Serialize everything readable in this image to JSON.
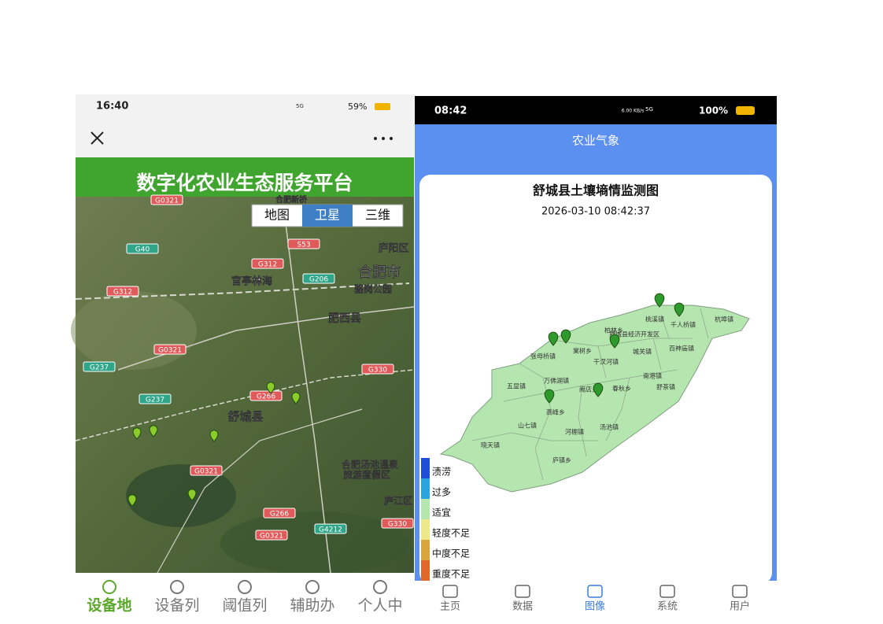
{
  "left_screen": {
    "status_bar": {
      "time": "16:40",
      "network": "5G",
      "battery": "59%"
    },
    "banner_title": "数字化农业生态服务平台",
    "map_toggle": [
      "地图",
      "卫星",
      "三维"
    ],
    "road_labels": [
      "G0321",
      "G40",
      "S53",
      "G312",
      "G206",
      "G312",
      "G0321",
      "G237",
      "G330",
      "G266",
      "G237",
      "G0321",
      "G266",
      "G4212",
      "G0321",
      "G330"
    ],
    "place_labels": [
      "合肥新桥",
      "庐阳区",
      "官亭林海",
      "合肥市",
      "骆岗公园",
      "肥西县",
      "舒城县",
      "合肥汤池温泉",
      "旅游度假区",
      "庐江区"
    ],
    "tabs": [
      "设备地",
      "设备列",
      "阈值列",
      "辅助办",
      "个人中"
    ]
  },
  "right_screen": {
    "status_bar": {
      "time": "08:42",
      "speed": "6.00 KB/s",
      "network": "5G",
      "battery": "100%"
    },
    "header_title": "农业气象",
    "card": {
      "title": "舒城县土壤墒情监测图",
      "timestamp": "2026-03-10 08:42:37",
      "town_labels": [
        "杭埠镇",
        "千人桥镇",
        "桃溪镇",
        "柏林乡",
        "舒城县经济开发区",
        "百神庙镇",
        "棠树乡",
        "城关镇",
        "张母桥镇",
        "干汊河镇",
        "南港镇",
        "万佛湖镇",
        "五显镇",
        "阙店乡",
        "春秋乡",
        "舒茶镇",
        "高峰乡",
        "山七镇",
        "河棚镇",
        "汤池镇",
        "晓天镇",
        "庐镇乡"
      ],
      "legend": [
        {
          "label": "渍涝",
          "color": "#1f4fd6"
        },
        {
          "label": "过多",
          "color": "#2aa4df"
        },
        {
          "label": "适宜",
          "color": "#b6e6b0"
        },
        {
          "label": "轻度不足",
          "color": "#ede98a"
        },
        {
          "label": "中度不足",
          "color": "#d8a53c"
        },
        {
          "label": "重度不足",
          "color": "#e0692a"
        }
      ]
    },
    "tabs": [
      "主页",
      "数据",
      "图像",
      "系统",
      "用户"
    ]
  }
}
